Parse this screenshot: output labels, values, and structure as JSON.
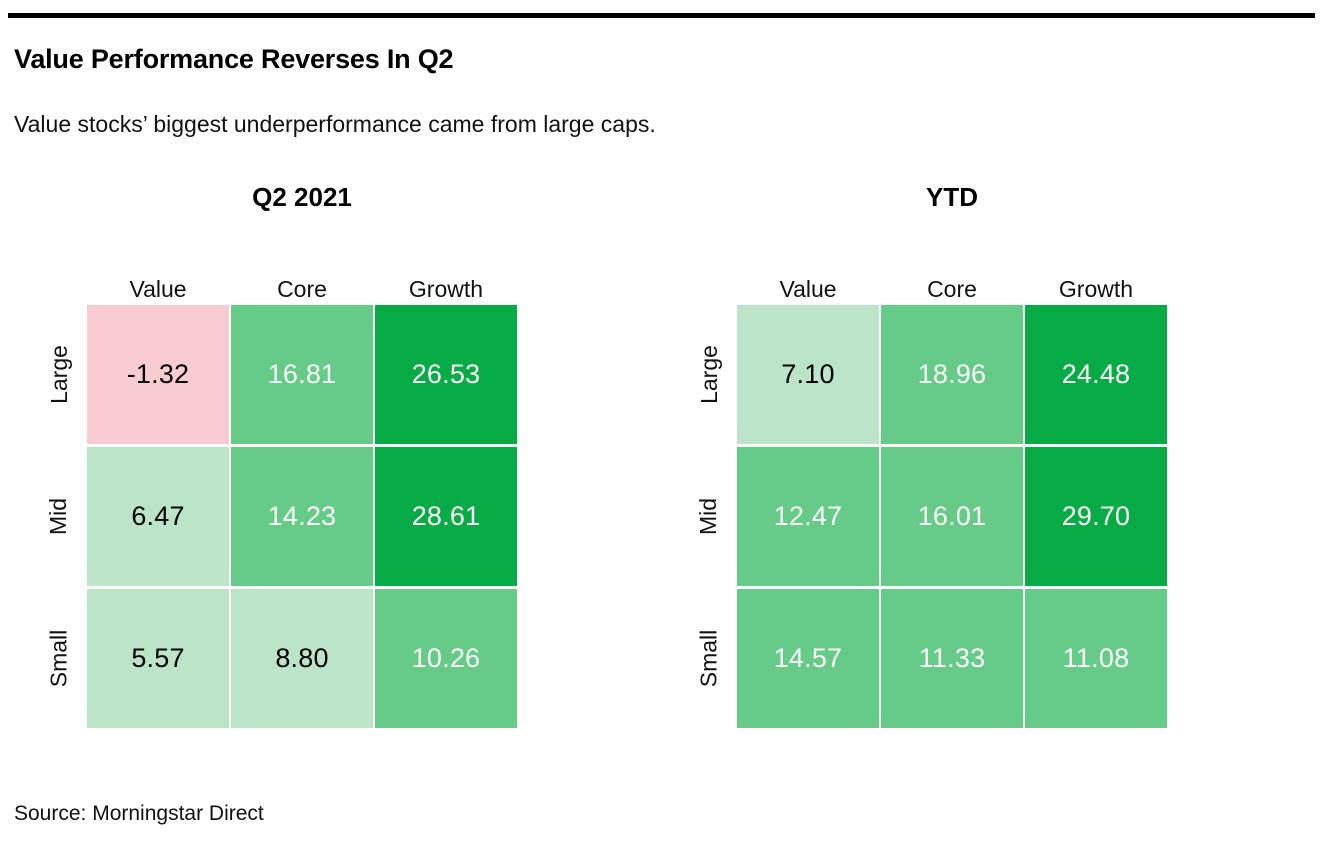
{
  "page": {
    "title": "Value Performance Reverses In Q2",
    "subtitle": "Value stocks’ biggest underperformance came from large caps.",
    "source": "Source: Morningstar Direct"
  },
  "colors": {
    "rule": "#000000",
    "negative_bg": "#f9ccd2",
    "low_bg": "#bce4c8",
    "mid_bg": "#66cb87",
    "high_bg": "#06ab45",
    "dark_text": "#000000",
    "light_text": "#ffffff"
  },
  "color_scale": {
    "bin_thresholds": [
      0,
      10,
      20
    ],
    "bin_order": [
      "negative_bg",
      "low_bg",
      "mid_bg",
      "high_bg"
    ]
  },
  "chart_data": [
    {
      "type": "heatmap",
      "title": "Q2 2021",
      "columns": [
        "Value",
        "Core",
        "Growth"
      ],
      "rows": [
        "Large",
        "Mid",
        "Small"
      ],
      "values": [
        [
          -1.32,
          16.81,
          26.53
        ],
        [
          6.47,
          14.23,
          28.61
        ],
        [
          5.57,
          8.8,
          10.26
        ]
      ],
      "cells": [
        [
          "-1.32",
          "16.81",
          "26.53"
        ],
        [
          "6.47",
          "14.23",
          "28.61"
        ],
        [
          "5.57",
          "8.80",
          "10.26"
        ]
      ]
    },
    {
      "type": "heatmap",
      "title": "YTD",
      "columns": [
        "Value",
        "Core",
        "Growth"
      ],
      "rows": [
        "Large",
        "Mid",
        "Small"
      ],
      "values": [
        [
          7.1,
          18.96,
          24.48
        ],
        [
          12.47,
          16.01,
          29.7
        ],
        [
          14.57,
          11.33,
          11.08
        ]
      ],
      "cells": [
        [
          "7.10",
          "18.96",
          "24.48"
        ],
        [
          "12.47",
          "16.01",
          "29.70"
        ],
        [
          "14.57",
          "11.33",
          "11.08"
        ]
      ]
    }
  ]
}
